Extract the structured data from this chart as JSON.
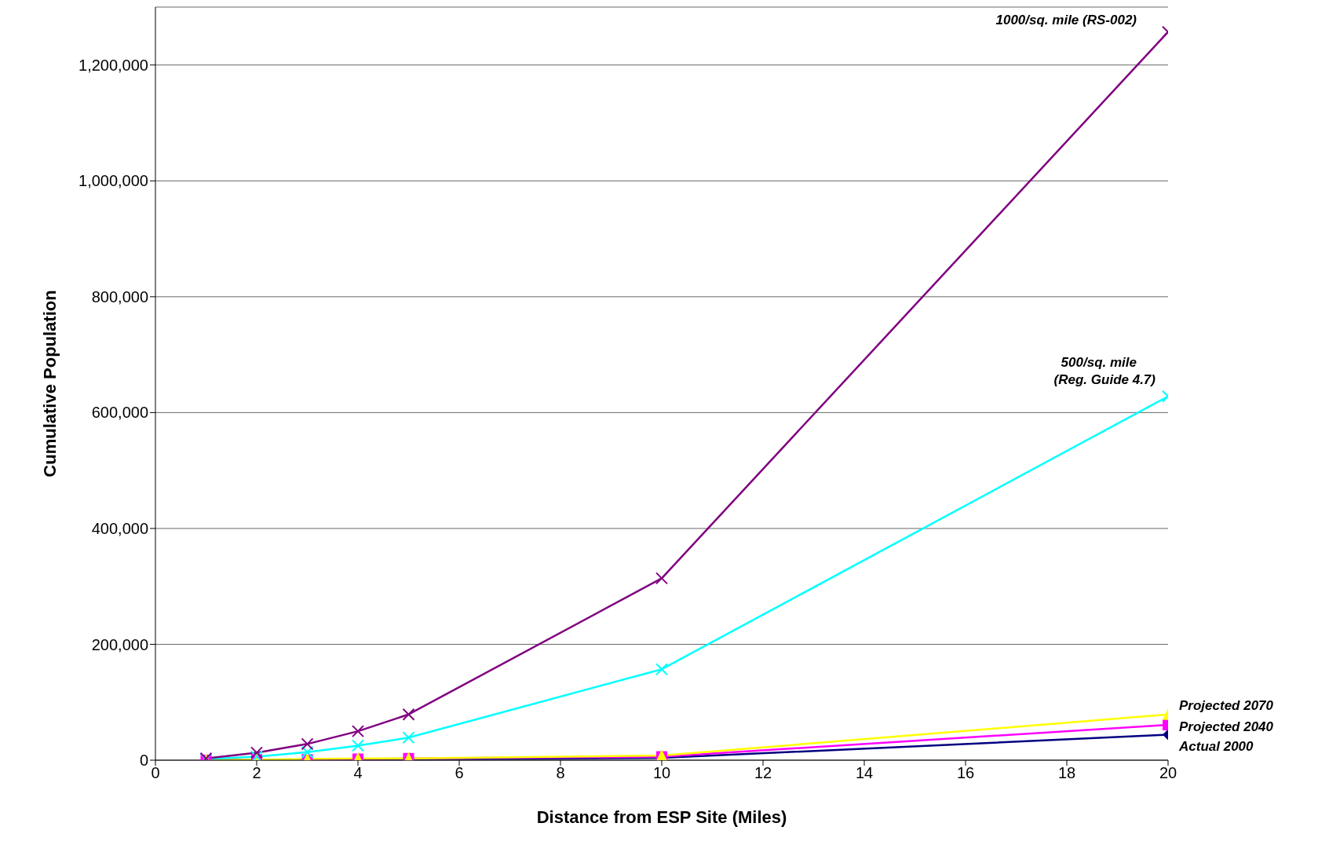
{
  "chart_data": {
    "type": "line",
    "xlabel": "Distance from ESP Site (Miles)",
    "ylabel": "Cumulative Population",
    "x": [
      1,
      2,
      3,
      4,
      5,
      10,
      20
    ],
    "series": [
      {
        "name": "Actual 2000",
        "color": "#000080",
        "marker": "diamond",
        "values": [
          0,
          1000,
          1000,
          2000,
          2000,
          4000,
          44000
        ]
      },
      {
        "name": "Projected 2040",
        "color": "#ff00ff",
        "marker": "square",
        "values": [
          0,
          1000,
          1000,
          2000,
          3000,
          6000,
          61000
        ]
      },
      {
        "name": "Projected 2070",
        "color": "#ffff00",
        "marker": "triangle",
        "values": [
          0,
          1000,
          2000,
          3000,
          3000,
          8000,
          79000
        ]
      },
      {
        "name": "500/sq. mile (Reg. Guide 4.7)",
        "color": "#00ffff",
        "marker": "cross",
        "values": [
          2000,
          6000,
          14000,
          25000,
          39000,
          157000,
          628000
        ]
      },
      {
        "name": "1000/sq. mile (RS-002)",
        "color": "#800080",
        "marker": "cross",
        "values": [
          3000,
          13000,
          28000,
          50000,
          79000,
          314000,
          1257000
        ]
      }
    ],
    "xlim": [
      0,
      20
    ],
    "xticks": [
      0,
      2,
      4,
      6,
      8,
      10,
      12,
      14,
      16,
      18,
      20
    ],
    "ylim": [
      0,
      1300000
    ],
    "yticks": [
      0,
      {
        "value": 200000,
        "label": "200,000"
      },
      {
        "value": 400000,
        "label": "400,000"
      },
      {
        "value": 600000,
        "label": "600,000"
      },
      {
        "value": 800000,
        "label": "800,000"
      },
      {
        "value": 1000000,
        "label": "1,000,000"
      },
      {
        "value": 1200000,
        "label": "1,200,000"
      }
    ],
    "grid": "y",
    "line_style": "solid"
  }
}
